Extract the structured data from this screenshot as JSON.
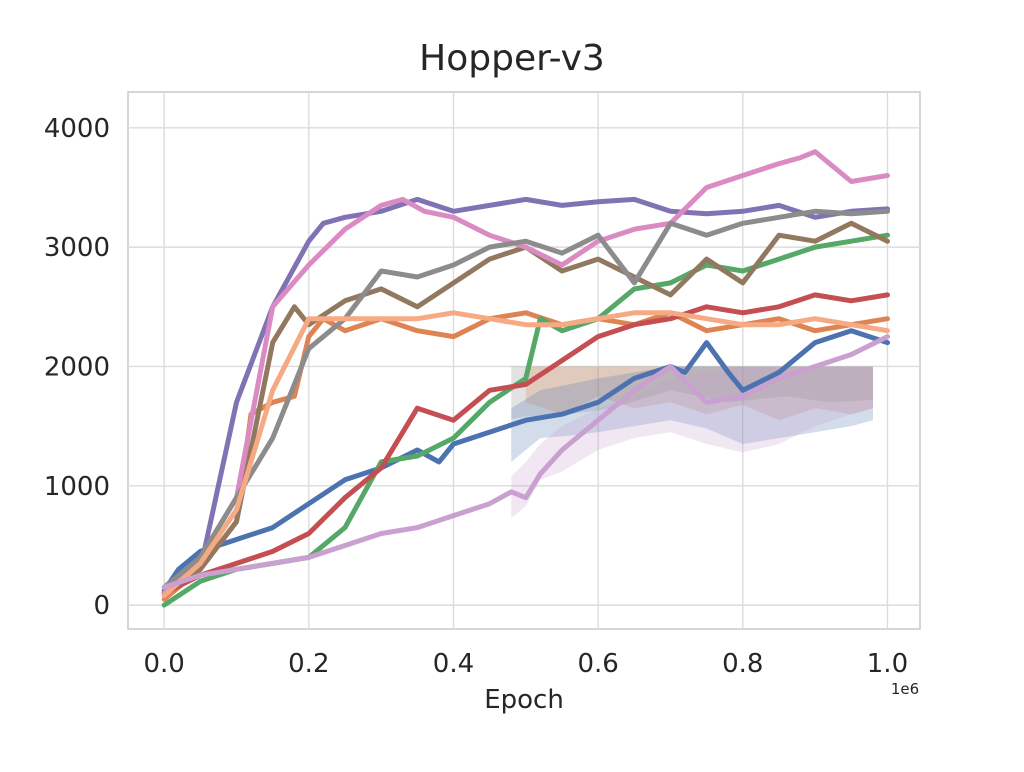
{
  "chart_data": {
    "type": "line",
    "title": "Hopper-v3",
    "xlabel": "Epoch",
    "ylabel": "",
    "x_offset_label": "1e6",
    "xlim": [
      -0.05,
      1.045
    ],
    "ylim": [
      -200,
      4300
    ],
    "x_ticks": [
      0.0,
      0.2,
      0.4,
      0.6,
      0.8,
      1.0
    ],
    "x_tick_labels": [
      "0.0",
      "0.2",
      "0.4",
      "0.6",
      "0.8",
      "1.0"
    ],
    "y_ticks": [
      0,
      1000,
      2000,
      3000,
      4000
    ],
    "y_tick_labels": [
      "0",
      "1000",
      "2000",
      "3000",
      "4000"
    ],
    "grid": true,
    "legend": "none",
    "bands": [
      {
        "color": "#8c8c8c",
        "x": [
          0.48,
          0.5,
          0.56,
          0.62,
          0.7,
          0.78,
          0.86,
          0.92,
          0.98
        ],
        "low": [
          1560,
          1580,
          1600,
          1650,
          1800,
          1700,
          1750,
          1700,
          1720
        ],
        "high": [
          2000,
          2000,
          2000,
          2000,
          2000,
          2000,
          2000,
          2000,
          2000
        ]
      },
      {
        "color": "#dd8452",
        "x": [
          0.5,
          0.55,
          0.6,
          0.65,
          0.7,
          0.75,
          0.8,
          0.85,
          0.9,
          0.95,
          0.98
        ],
        "low": [
          1700,
          1600,
          1750,
          1650,
          1700,
          1600,
          1680,
          1550,
          1650,
          1600,
          1650
        ],
        "high": [
          2000,
          2000,
          2000,
          2000,
          2000,
          2000,
          2000,
          2000,
          2000,
          2000,
          2000
        ]
      },
      {
        "color": "#4c72b0",
        "x": [
          0.48,
          0.52,
          0.56,
          0.6,
          0.65,
          0.7,
          0.75,
          0.8,
          0.85,
          0.9,
          0.95,
          0.98
        ],
        "low": [
          1200,
          1400,
          1420,
          1450,
          1500,
          1550,
          1480,
          1350,
          1400,
          1450,
          1500,
          1550
        ],
        "high": [
          1650,
          1800,
          1850,
          1900,
          1950,
          2000,
          2000,
          2000,
          2000,
          2000,
          2000,
          2000
        ]
      },
      {
        "color": "#c9a0d0",
        "x": [
          0.48,
          0.5,
          0.52,
          0.55,
          0.6,
          0.65,
          0.7,
          0.75,
          0.8,
          0.85,
          0.9,
          0.95,
          0.98
        ],
        "low": [
          730,
          830,
          1050,
          1120,
          1300,
          1400,
          1450,
          1350,
          1280,
          1350,
          1500,
          1600,
          1650
        ],
        "high": [
          1080,
          1200,
          1350,
          1500,
          1650,
          1750,
          1900,
          1950,
          2000,
          2000,
          2000,
          2000,
          2000
        ]
      }
    ],
    "series": [
      {
        "color": "#4c72b0",
        "x": [
          0.0,
          0.02,
          0.05,
          0.1,
          0.15,
          0.2,
          0.25,
          0.3,
          0.35,
          0.38,
          0.4,
          0.45,
          0.5,
          0.55,
          0.6,
          0.65,
          0.7,
          0.72,
          0.75,
          0.78,
          0.8,
          0.85,
          0.9,
          0.95,
          1.0
        ],
        "y": [
          120,
          300,
          450,
          550,
          650,
          850,
          1050,
          1150,
          1300,
          1200,
          1350,
          1450,
          1550,
          1600,
          1700,
          1900,
          2000,
          1950,
          2200,
          1950,
          1800,
          1950,
          2200,
          2300,
          2200
        ]
      },
      {
        "color": "#dd8452",
        "x": [
          0.0,
          0.05,
          0.1,
          0.12,
          0.15,
          0.18,
          0.2,
          0.22,
          0.25,
          0.3,
          0.35,
          0.4,
          0.45,
          0.5,
          0.55,
          0.6,
          0.65,
          0.7,
          0.75,
          0.8,
          0.85,
          0.9,
          0.95,
          1.0
        ],
        "y": [
          50,
          300,
          700,
          1600,
          1700,
          1750,
          2250,
          2400,
          2300,
          2400,
          2300,
          2250,
          2400,
          2450,
          2350,
          2400,
          2350,
          2450,
          2300,
          2350,
          2400,
          2300,
          2350,
          2400
        ]
      },
      {
        "color": "#55a868",
        "x": [
          0.0,
          0.05,
          0.1,
          0.15,
          0.2,
          0.25,
          0.3,
          0.35,
          0.4,
          0.45,
          0.5,
          0.52,
          0.55,
          0.6,
          0.65,
          0.7,
          0.75,
          0.8,
          0.85,
          0.9,
          0.95,
          1.0
        ],
        "y": [
          0,
          200,
          300,
          350,
          400,
          650,
          1200,
          1250,
          1400,
          1700,
          1900,
          2400,
          2300,
          2400,
          2650,
          2700,
          2850,
          2800,
          2900,
          3000,
          3050,
          3100
        ]
      },
      {
        "color": "#c44e52",
        "x": [
          0.0,
          0.05,
          0.1,
          0.15,
          0.2,
          0.25,
          0.3,
          0.35,
          0.4,
          0.45,
          0.5,
          0.55,
          0.6,
          0.65,
          0.7,
          0.75,
          0.8,
          0.85,
          0.9,
          0.95,
          1.0
        ],
        "y": [
          100,
          250,
          350,
          450,
          600,
          900,
          1150,
          1650,
          1550,
          1800,
          1850,
          2050,
          2250,
          2350,
          2400,
          2500,
          2450,
          2500,
          2600,
          2550,
          2600
        ]
      },
      {
        "color": "#8172b3",
        "x": [
          0.0,
          0.05,
          0.1,
          0.15,
          0.2,
          0.22,
          0.25,
          0.3,
          0.35,
          0.4,
          0.45,
          0.5,
          0.55,
          0.6,
          0.65,
          0.7,
          0.75,
          0.8,
          0.85,
          0.9,
          0.95,
          1.0
        ],
        "y": [
          100,
          300,
          1700,
          2500,
          3050,
          3200,
          3250,
          3300,
          3400,
          3300,
          3350,
          3400,
          3350,
          3380,
          3400,
          3300,
          3280,
          3300,
          3350,
          3250,
          3300,
          3320
        ]
      },
      {
        "color": "#937860",
        "x": [
          0.0,
          0.05,
          0.1,
          0.15,
          0.18,
          0.2,
          0.25,
          0.3,
          0.35,
          0.4,
          0.45,
          0.5,
          0.55,
          0.6,
          0.65,
          0.7,
          0.75,
          0.8,
          0.85,
          0.9,
          0.95,
          1.0
        ],
        "y": [
          100,
          300,
          700,
          2200,
          2500,
          2350,
          2550,
          2650,
          2500,
          2700,
          2900,
          3000,
          2800,
          2900,
          2750,
          2600,
          2900,
          2700,
          3100,
          3050,
          3200,
          3050
        ]
      },
      {
        "color": "#da8bc3",
        "x": [
          0.0,
          0.05,
          0.1,
          0.15,
          0.2,
          0.25,
          0.3,
          0.33,
          0.36,
          0.4,
          0.45,
          0.5,
          0.55,
          0.6,
          0.65,
          0.7,
          0.75,
          0.8,
          0.85,
          0.88,
          0.9,
          0.95,
          1.0
        ],
        "y": [
          100,
          400,
          900,
          2500,
          2850,
          3150,
          3350,
          3400,
          3300,
          3250,
          3100,
          3000,
          2850,
          3050,
          3150,
          3200,
          3500,
          3600,
          3700,
          3750,
          3800,
          3550,
          3600
        ]
      },
      {
        "color": "#8c8c8c",
        "x": [
          0.0,
          0.05,
          0.1,
          0.15,
          0.2,
          0.25,
          0.3,
          0.35,
          0.4,
          0.45,
          0.5,
          0.55,
          0.6,
          0.65,
          0.7,
          0.75,
          0.8,
          0.85,
          0.9,
          0.95,
          1.0
        ],
        "y": [
          150,
          400,
          900,
          1400,
          2150,
          2400,
          2800,
          2750,
          2850,
          3000,
          3050,
          2950,
          3100,
          2700,
          3200,
          3100,
          3200,
          3250,
          3300,
          3280,
          3300
        ]
      },
      {
        "color": "#f5aa84",
        "x": [
          0.0,
          0.05,
          0.1,
          0.15,
          0.2,
          0.25,
          0.3,
          0.35,
          0.4,
          0.45,
          0.5,
          0.55,
          0.6,
          0.65,
          0.7,
          0.75,
          0.8,
          0.85,
          0.9,
          0.95,
          1.0
        ],
        "y": [
          80,
          350,
          800,
          1800,
          2400,
          2400,
          2400,
          2400,
          2450,
          2400,
          2350,
          2350,
          2400,
          2450,
          2450,
          2400,
          2350,
          2350,
          2400,
          2350,
          2300
        ]
      },
      {
        "color": "#c9a0d0",
        "x": [
          0.0,
          0.05,
          0.1,
          0.15,
          0.2,
          0.25,
          0.3,
          0.35,
          0.4,
          0.45,
          0.48,
          0.5,
          0.52,
          0.55,
          0.6,
          0.65,
          0.7,
          0.75,
          0.8,
          0.85,
          0.9,
          0.95,
          1.0
        ],
        "y": [
          150,
          250,
          300,
          350,
          400,
          500,
          600,
          650,
          750,
          850,
          950,
          900,
          1100,
          1300,
          1550,
          1800,
          2000,
          1700,
          1750,
          1900,
          2000,
          2100,
          2250
        ]
      }
    ]
  }
}
